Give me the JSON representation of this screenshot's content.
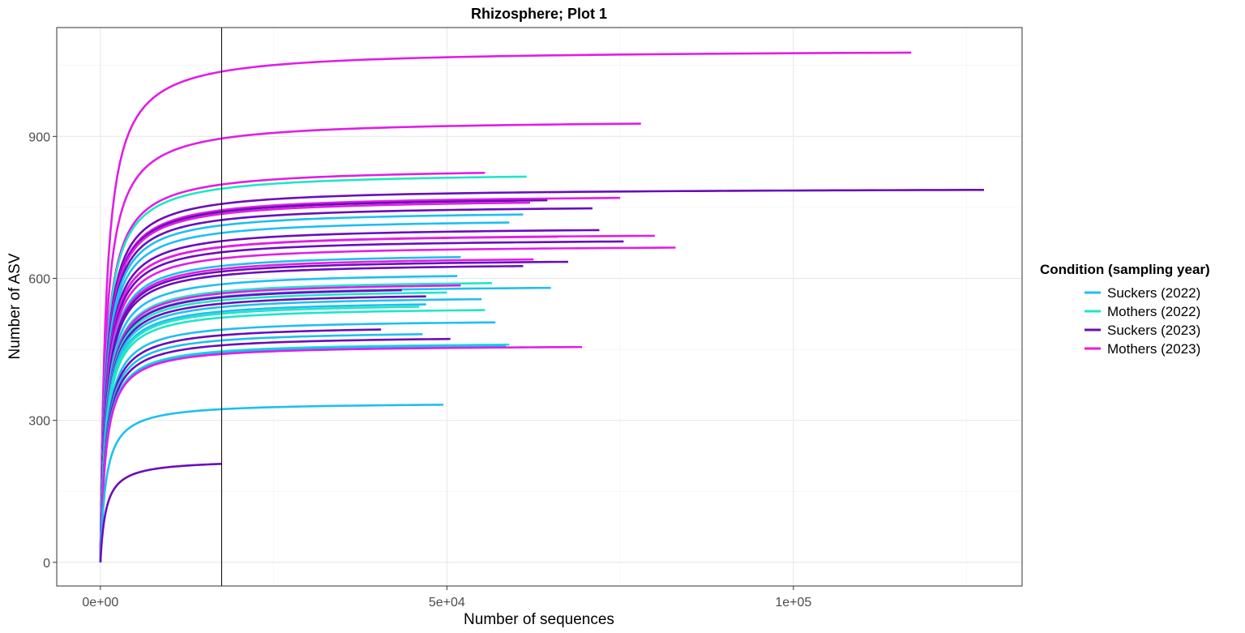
{
  "chart_data": {
    "type": "line",
    "title": "Rhizosphere; Plot 1",
    "xlabel": "Number of sequences",
    "ylabel": "Number of ASV",
    "xlim": [
      -6300,
      133000
    ],
    "ylim": [
      -50,
      1130
    ],
    "x_ticks": [
      0,
      50000,
      100000
    ],
    "x_tick_labels": [
      "0e+00",
      "5e+04",
      "1e+05"
    ],
    "y_ticks": [
      0,
      300,
      600,
      900
    ],
    "y_tick_labels": [
      "0",
      "300",
      "600",
      "900"
    ],
    "grid": true,
    "legend": {
      "title": "Condition (sampling year)",
      "position": "right",
      "entries": [
        {
          "label": "Suckers (2022)",
          "color": "#1ebff0"
        },
        {
          "label": "Mothers (2022)",
          "color": "#1ee6c8"
        },
        {
          "label": "Suckers (2023)",
          "color": "#6a0dba"
        },
        {
          "label": "Mothers (2023)",
          "color": "#e01ee6"
        }
      ]
    },
    "reference_line_x": 17500,
    "curve_model": "y = S * x / (x + K)",
    "series": [
      {
        "group": 3,
        "max_x": 117000,
        "max_y": 1077
      },
      {
        "group": 3,
        "max_x": 78000,
        "max_y": 927
      },
      {
        "group": 3,
        "max_x": 55500,
        "max_y": 823
      },
      {
        "group": 1,
        "max_x": 61500,
        "max_y": 815
      },
      {
        "group": 2,
        "max_x": 127500,
        "max_y": 787
      },
      {
        "group": 3,
        "max_x": 75000,
        "max_y": 770
      },
      {
        "group": 2,
        "max_x": 64500,
        "max_y": 765
      },
      {
        "group": 3,
        "max_x": 62000,
        "max_y": 760
      },
      {
        "group": 2,
        "max_x": 71000,
        "max_y": 748
      },
      {
        "group": 0,
        "max_x": 61000,
        "max_y": 735
      },
      {
        "group": 0,
        "max_x": 59000,
        "max_y": 718
      },
      {
        "group": 2,
        "max_x": 72000,
        "max_y": 702
      },
      {
        "group": 3,
        "max_x": 80000,
        "max_y": 690
      },
      {
        "group": 3,
        "max_x": 66000,
        "max_y": 688
      },
      {
        "group": 2,
        "max_x": 75500,
        "max_y": 678
      },
      {
        "group": 3,
        "max_x": 83000,
        "max_y": 665
      },
      {
        "group": 0,
        "max_x": 52000,
        "max_y": 645
      },
      {
        "group": 3,
        "max_x": 62500,
        "max_y": 640
      },
      {
        "group": 2,
        "max_x": 67500,
        "max_y": 635
      },
      {
        "group": 2,
        "max_x": 61000,
        "max_y": 626
      },
      {
        "group": 0,
        "max_x": 51500,
        "max_y": 605
      },
      {
        "group": 1,
        "max_x": 56500,
        "max_y": 590
      },
      {
        "group": 3,
        "max_x": 52000,
        "max_y": 585
      },
      {
        "group": 0,
        "max_x": 65000,
        "max_y": 580
      },
      {
        "group": 2,
        "max_x": 43500,
        "max_y": 575
      },
      {
        "group": 1,
        "max_x": 50000,
        "max_y": 570
      },
      {
        "group": 2,
        "max_x": 47000,
        "max_y": 562
      },
      {
        "group": 0,
        "max_x": 55000,
        "max_y": 556
      },
      {
        "group": 0,
        "max_x": 47000,
        "max_y": 545
      },
      {
        "group": 1,
        "max_x": 46000,
        "max_y": 540
      },
      {
        "group": 1,
        "max_x": 55500,
        "max_y": 533
      },
      {
        "group": 0,
        "max_x": 57000,
        "max_y": 507
      },
      {
        "group": 2,
        "max_x": 40500,
        "max_y": 492
      },
      {
        "group": 0,
        "max_x": 46500,
        "max_y": 482
      },
      {
        "group": 2,
        "max_x": 50500,
        "max_y": 472
      },
      {
        "group": 1,
        "max_x": 59000,
        "max_y": 460
      },
      {
        "group": 0,
        "max_x": 58500,
        "max_y": 458
      },
      {
        "group": 3,
        "max_x": 69500,
        "max_y": 455
      },
      {
        "group": 0,
        "max_x": 49500,
        "max_y": 333
      },
      {
        "group": 2,
        "max_x": 17500,
        "max_y": 208
      }
    ]
  }
}
